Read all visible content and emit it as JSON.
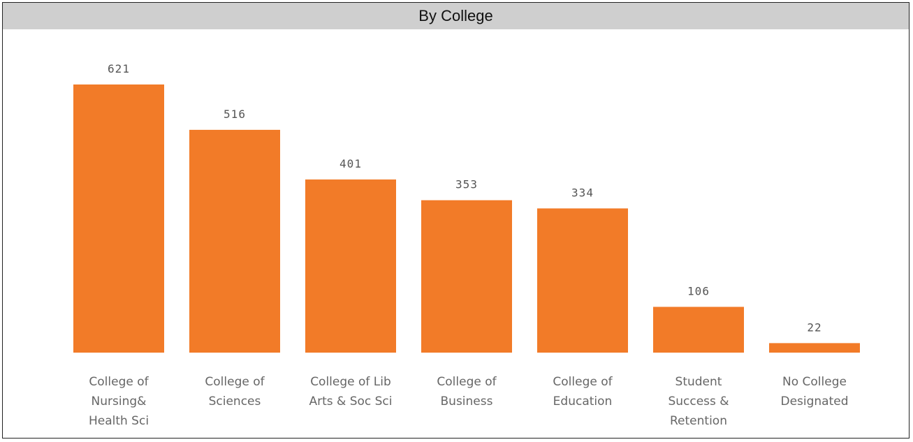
{
  "chart_data": {
    "type": "bar",
    "title": "By College",
    "categories": [
      [
        "College of",
        "Nursing&",
        "Health Sci"
      ],
      [
        "College of",
        "Sciences"
      ],
      [
        "College of Lib",
        "Arts & Soc Sci"
      ],
      [
        "College of",
        "Business"
      ],
      [
        "College of",
        "Education"
      ],
      [
        "Student",
        "Success &",
        "Retention"
      ],
      [
        "No College",
        "Designated"
      ]
    ],
    "values": [
      621,
      516,
      401,
      353,
      334,
      106,
      22
    ],
    "data_labels": [
      "621",
      "516",
      "401",
      "353",
      "334",
      "106",
      "22"
    ],
    "bar_color": "#F27B28",
    "xlabel": "",
    "ylabel": "",
    "grid": false,
    "legend": "none"
  }
}
